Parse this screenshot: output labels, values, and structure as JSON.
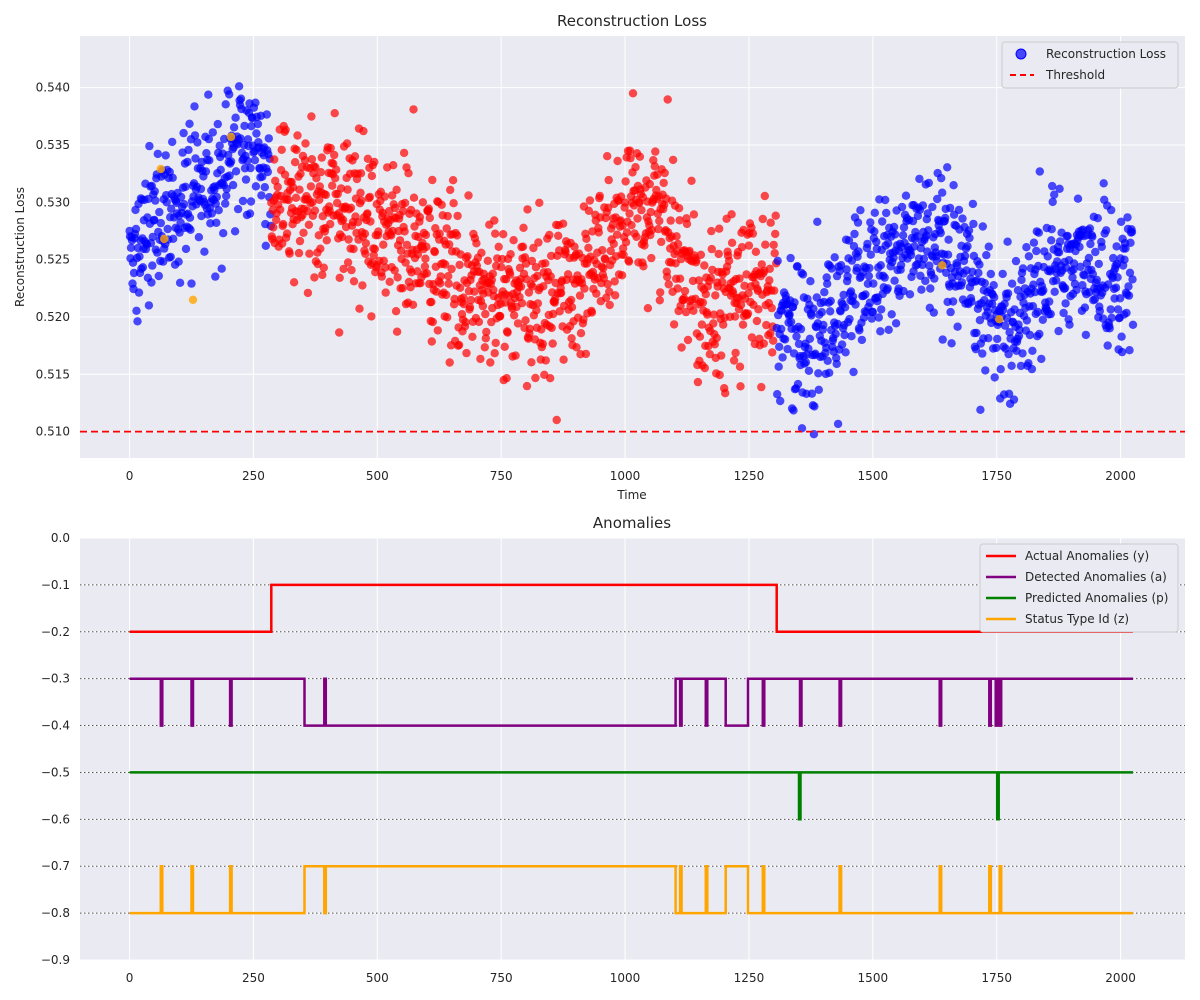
{
  "chart_data": [
    {
      "type": "scatter",
      "title": "Reconstruction Loss",
      "xlabel": "Time",
      "ylabel": "Reconstruction Loss",
      "xlim": [
        -100,
        2130
      ],
      "ylim": [
        0.5077,
        0.5445
      ],
      "xticks": [
        0,
        250,
        500,
        750,
        1000,
        1250,
        1500,
        1750,
        2000
      ],
      "yticks": [
        0.51,
        0.515,
        0.52,
        0.525,
        0.53,
        0.535,
        0.54
      ],
      "ytick_labels": [
        "0.510",
        "0.515",
        "0.520",
        "0.525",
        "0.530",
        "0.535",
        "0.540"
      ],
      "grid": true,
      "legend_position": "top-right",
      "series": [
        {
          "name": "Reconstruction Loss",
          "kind": "points",
          "color_normal": "#0000ff",
          "color_anomaly": "#ff0000",
          "color_status": "#ffa500",
          "n_points": 2025,
          "segments": [
            {
              "x_start": 0,
              "x_end": 285,
              "color": "normal",
              "trend": [
                [
                  0,
                  0.526
                ],
                [
                  100,
                  0.53
                ],
                [
                  250,
                  0.535
                ],
                [
                  285,
                  0.531
                ]
              ],
              "spread": 0.0042
            },
            {
              "x_start": 286,
              "x_end": 1305,
              "color": "anomaly",
              "trend": [
                [
                  286,
                  0.531
                ],
                [
                  400,
                  0.53
                ],
                [
                  550,
                  0.527
                ],
                [
                  700,
                  0.522
                ],
                [
                  800,
                  0.521
                ],
                [
                  900,
                  0.523
                ],
                [
                  1000,
                  0.528
                ],
                [
                  1060,
                  0.53
                ],
                [
                  1150,
                  0.522
                ],
                [
                  1250,
                  0.522
                ],
                [
                  1305,
                  0.524
                ]
              ],
              "spread": 0.0045
            },
            {
              "x_start": 1306,
              "x_end": 2025,
              "color": "normal",
              "trend": [
                [
                  1306,
                  0.52
                ],
                [
                  1380,
                  0.517
                ],
                [
                  1450,
                  0.522
                ],
                [
                  1600,
                  0.527
                ],
                [
                  1700,
                  0.522
                ],
                [
                  1780,
                  0.519
                ],
                [
                  1870,
                  0.525
                ],
                [
                  2025,
                  0.523
                ]
              ],
              "spread": 0.0042
            }
          ],
          "status_points": [
            [
              63,
              0.5329
            ],
            [
              70,
              0.5268
            ],
            [
              128,
              0.5215
            ],
            [
              205,
              0.5357
            ],
            [
              1640,
              0.5245
            ],
            [
              1755,
              0.5198
            ]
          ]
        },
        {
          "name": "Threshold",
          "kind": "hline",
          "y": 0.51,
          "color": "#ff0000",
          "style": "dashed"
        }
      ]
    },
    {
      "type": "line",
      "title": "Anomalies",
      "xlabel": "",
      "ylabel": "",
      "xlim": [
        -100,
        2130
      ],
      "ylim": [
        -0.9,
        0.0
      ],
      "xticks": [
        0,
        250,
        500,
        750,
        1000,
        1250,
        1500,
        1750,
        2000
      ],
      "yticks": [
        -0.9,
        -0.8,
        -0.7,
        -0.6,
        -0.5,
        -0.4,
        -0.3,
        -0.2,
        -0.1,
        0.0
      ],
      "ytick_labels": [
        "−0.9",
        "−0.8",
        "−0.7",
        "−0.6",
        "−0.5",
        "−0.4",
        "−0.3",
        "−0.2",
        "−0.1",
        "0.0"
      ],
      "dotted_hlines": [
        -0.1,
        -0.2,
        -0.3,
        -0.4,
        -0.5,
        -0.6,
        -0.7,
        -0.8
      ],
      "grid": true,
      "legend_position": "top-right",
      "x_max": 2025,
      "series": [
        {
          "name": "Actual Anomalies (y)",
          "color": "#ff0000",
          "base": -0.2,
          "active": -0.1,
          "intervals": [
            [
              286,
              1306
            ]
          ]
        },
        {
          "name": "Detected Anomalies (a)",
          "color": "#800080",
          "base": -0.3,
          "active": -0.4,
          "intervals": [
            [
              63,
              66
            ],
            [
              125,
              128
            ],
            [
              203,
              206
            ],
            [
              353,
              393
            ],
            [
              396,
              1102
            ],
            [
              1111,
              1114
            ],
            [
              1163,
              1166
            ],
            [
              1203,
              1248
            ],
            [
              1278,
              1281
            ],
            [
              1353,
              1356
            ],
            [
              1433,
              1436
            ],
            [
              1635,
              1638
            ],
            [
              1735,
              1738
            ],
            [
              1748,
              1751
            ],
            [
              1756,
              1759
            ]
          ]
        },
        {
          "name": "Predicted Anomalies (p)",
          "color": "#008000",
          "base": -0.5,
          "active": -0.6,
          "intervals": [
            [
              1351,
              1354
            ],
            [
              1751,
              1754
            ]
          ]
        },
        {
          "name": "Status Type Id (z)",
          "color": "#ffa500",
          "base": -0.8,
          "active": -0.7,
          "intervals": [
            [
              63,
              66
            ],
            [
              125,
              128
            ],
            [
              203,
              206
            ],
            [
              353,
              393
            ],
            [
              396,
              1102
            ],
            [
              1111,
              1114
            ],
            [
              1163,
              1166
            ],
            [
              1203,
              1248
            ],
            [
              1278,
              1281
            ],
            [
              1433,
              1436
            ],
            [
              1635,
              1638
            ],
            [
              1735,
              1738
            ],
            [
              1756,
              1759
            ]
          ]
        }
      ]
    }
  ]
}
